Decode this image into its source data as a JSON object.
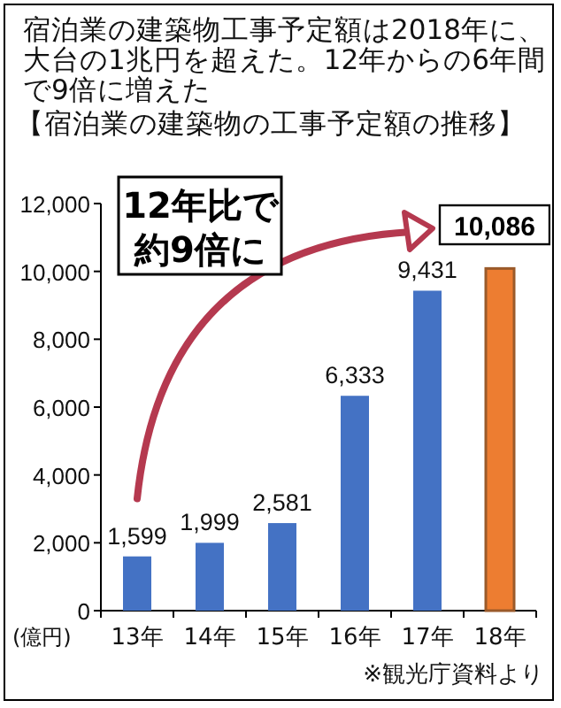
{
  "chart_data": {
    "type": "bar",
    "title": "宿泊業の建築物工事予定額は2018年に、大台の1兆円を超えた。12年からの6年間で9倍に増えた",
    "subtitle": "【宿泊業の建築物の工事予定額の推移】",
    "ylabel": "(億円)",
    "categories": [
      "13年",
      "14年",
      "15年",
      "16年",
      "17年",
      "18年"
    ],
    "values": [
      1599,
      1999,
      2581,
      6333,
      9431,
      10086
    ],
    "colors": [
      "#4472c4",
      "#4472c4",
      "#4472c4",
      "#4472c4",
      "#4472c4",
      "#ed7d31"
    ],
    "ylim": [
      0,
      12000
    ],
    "yticks": [
      {
        "value": 0,
        "label": "0"
      },
      {
        "value": 2000,
        "label": "2,000"
      },
      {
        "value": 4000,
        "label": "4,000"
      },
      {
        "value": 6000,
        "label": "6,000"
      },
      {
        "value": 8000,
        "label": "8,000"
      },
      {
        "value": 10000,
        "label": "10,000"
      },
      {
        "value": 12000,
        "label": "12,000"
      }
    ],
    "value_labels": [
      "1,599",
      "1,999",
      "2,581",
      "6,333",
      "9,431",
      "10,086"
    ],
    "annotations": [
      "12年比で",
      "約9倍に",
      "※観光庁資料より"
    ],
    "grid": false
  }
}
